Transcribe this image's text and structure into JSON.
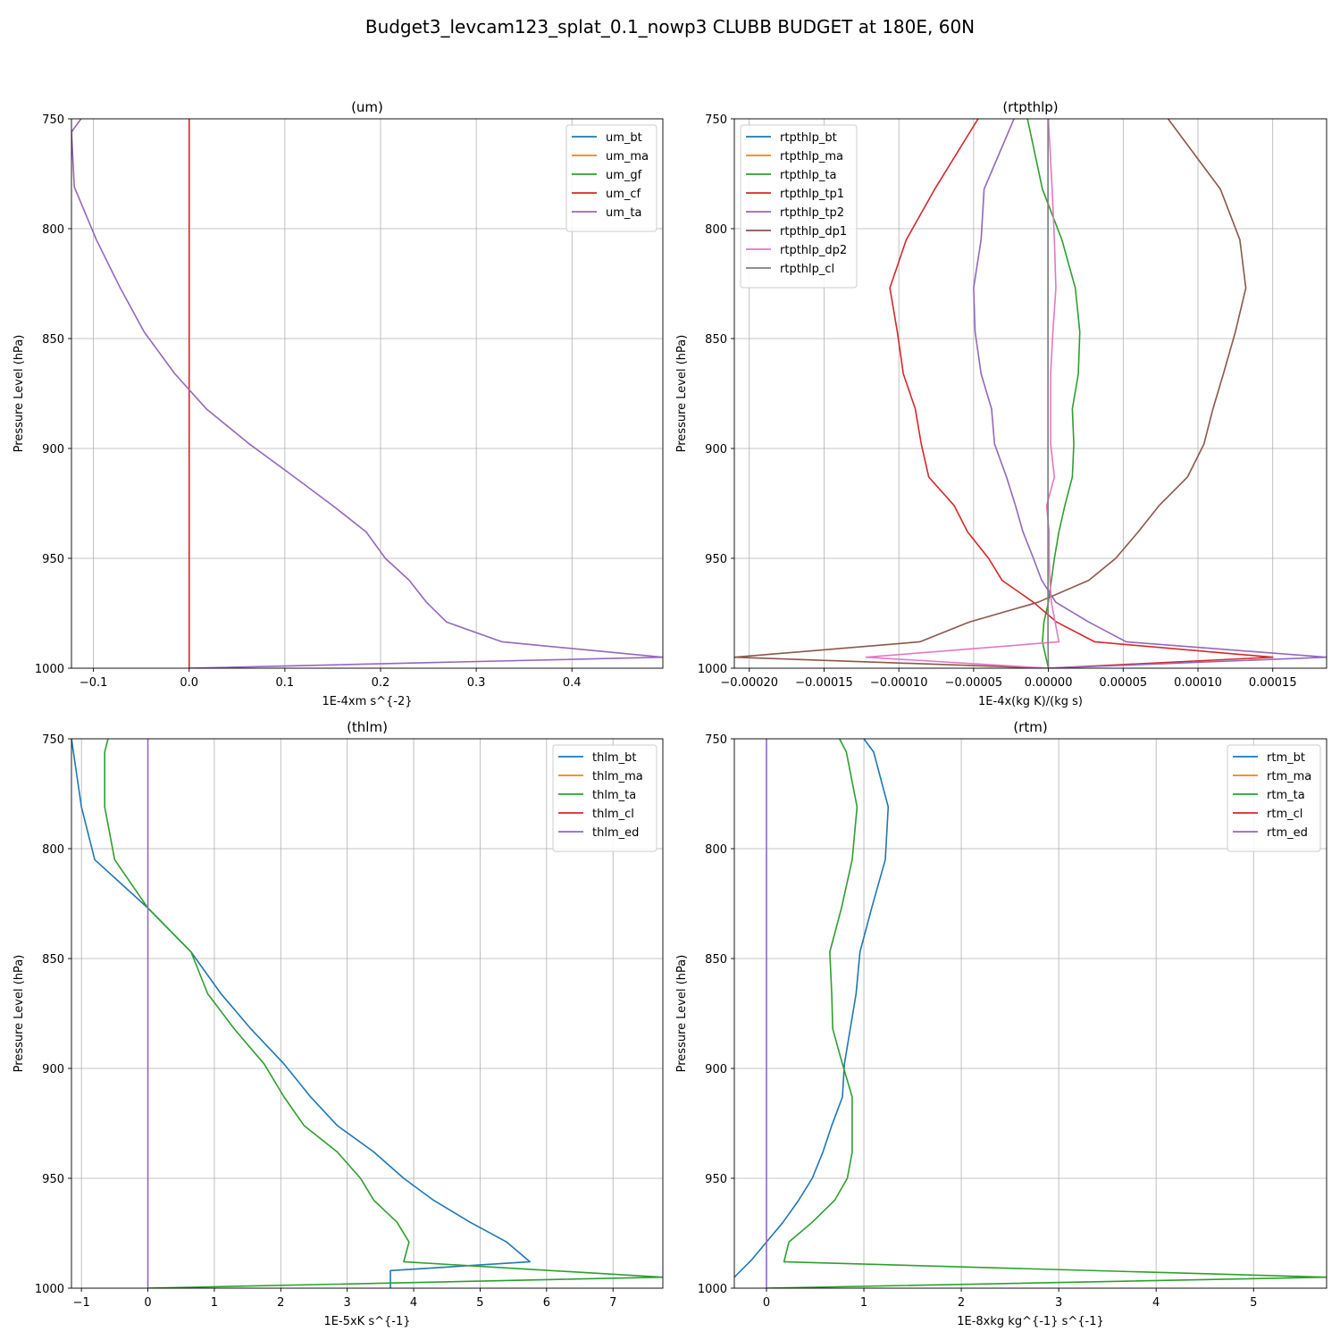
{
  "figure_title": "Budget3_levcam123_splat_0.1_nowp3 CLUBB BUDGET at 180E, 60N",
  "chart_data": [
    {
      "type": "line",
      "title": "(um)",
      "xlabel": "1E-4xm s^{-2}",
      "ylabel": "Pressure Level (hPa)",
      "xlim": [
        -0.123,
        0.495
      ],
      "ylim": [
        1000,
        750
      ],
      "xticks": [
        -0.1,
        0.0,
        0.1,
        0.2,
        0.3,
        0.4
      ],
      "xtick_labels": [
        "−0.1",
        "0.0",
        "0.1",
        "0.2",
        "0.3",
        "0.4"
      ],
      "yticks": [
        750,
        800,
        850,
        900,
        950,
        1000
      ],
      "legend_loc": "upper right",
      "series": [
        {
          "name": "um_bt",
          "color": "#1f77b4",
          "visible": false,
          "x": [],
          "y": []
        },
        {
          "name": "um_ma",
          "color": "#ff7f0e",
          "visible": false,
          "x": [],
          "y": []
        },
        {
          "name": "um_gf",
          "color": "#2ca02c",
          "visible": false,
          "x": [],
          "y": []
        },
        {
          "name": "um_cf",
          "color": "#d62728",
          "visible": true,
          "x": [
            0,
            0
          ],
          "y": [
            750,
            1000
          ]
        },
        {
          "name": "um_ta",
          "color": "#9467bd",
          "visible": true,
          "x": [
            -0.113,
            -0.123,
            -0.12,
            -0.097,
            -0.072,
            -0.047,
            -0.015,
            0.018,
            0.063,
            0.11,
            0.15,
            0.185,
            0.205,
            0.23,
            0.248,
            0.269,
            0.327,
            0.495,
            0.0
          ],
          "y": [
            750,
            756,
            781,
            805,
            827,
            847,
            866,
            882,
            898,
            913,
            926,
            938,
            950,
            960,
            970,
            979,
            988,
            995,
            1000
          ]
        }
      ]
    },
    {
      "type": "line",
      "title": "(rtpthlp)",
      "xlabel": "1E-4x(kg K)/(kg s)",
      "ylabel": "Pressure Level (hPa)",
      "xlim": [
        -0.00021,
        0.000186
      ],
      "ylim": [
        1000,
        750
      ],
      "xticks": [
        -0.0002,
        -0.00015,
        -0.0001,
        -5e-05,
        0.0,
        5e-05,
        0.0001,
        0.00015
      ],
      "xtick_labels": [
        "−0.00020",
        "−0.00015",
        "−0.00010",
        "−0.00005",
        "0.00000",
        "0.00005",
        "0.00010",
        "0.00015"
      ],
      "yticks": [
        750,
        800,
        850,
        900,
        950,
        1000
      ],
      "legend_loc": "upper left",
      "series": [
        {
          "name": "rtpthlp_bt",
          "color": "#1f77b4",
          "visible": false,
          "x": [],
          "y": []
        },
        {
          "name": "rtpthlp_ma",
          "color": "#ff7f0e",
          "visible": false,
          "x": [],
          "y": []
        },
        {
          "name": "rtpthlp_ta",
          "color": "#2ca02c",
          "visible": true,
          "x": [
            -1.4e-05,
            -4e-06,
            9e-06,
            1.8e-05,
            2.1e-05,
            2e-05,
            1.6e-05,
            1.7e-05,
            1.6e-05,
            1.1e-05,
            7e-06,
            4e-06,
            2e-06,
            0.0,
            -3e-06,
            -4e-06,
            0.0
          ],
          "y": [
            750,
            782,
            805,
            827,
            847,
            866,
            882,
            898,
            913,
            926,
            938,
            950,
            960,
            970,
            979,
            988,
            1000
          ]
        },
        {
          "name": "rtpthlp_tp1",
          "color": "#d62728",
          "visible": true,
          "x": [
            -4.7e-05,
            -7.6e-05,
            -9.5e-05,
            -0.000106,
            -0.000101,
            -9.7e-05,
            -8.9e-05,
            -8.5e-05,
            -8e-05,
            -6.3e-05,
            -5.4e-05,
            -4e-05,
            -3.1e-05,
            -1e-05,
            5.5e-06,
            3.1e-05,
            0.00015,
            0.0
          ],
          "y": [
            750,
            782,
            805,
            827,
            847,
            866,
            882,
            898,
            913,
            926,
            938,
            950,
            960,
            970,
            979,
            988,
            995,
            1000
          ]
        },
        {
          "name": "rtpthlp_tp2",
          "color": "#9467bd",
          "visible": true,
          "x": [
            -2.3e-05,
            -4.3e-05,
            -4.5e-05,
            -5e-05,
            -4.9e-05,
            -4.5e-05,
            -3.8e-05,
            -3.6e-05,
            -2.8e-05,
            -2.2e-05,
            -1.7e-05,
            -1e-05,
            -4.5e-06,
            5e-06,
            2.7e-05,
            5.2e-05,
            0.000186,
            0.0
          ],
          "y": [
            750,
            782,
            805,
            827,
            847,
            866,
            882,
            898,
            913,
            926,
            938,
            950,
            960,
            970,
            979,
            988,
            995,
            1000
          ]
        },
        {
          "name": "rtpthlp_dp1",
          "color": "#8c564b",
          "visible": true,
          "x": [
            8e-05,
            0.000115,
            0.000128,
            0.000132,
            0.000125,
            0.000117,
            0.00011,
            0.000104,
            9.3e-05,
            7.4e-05,
            6e-05,
            4.5e-05,
            2.7e-05,
            -7e-06,
            -5.3e-05,
            -8.6e-05,
            -0.00021,
            0.0
          ],
          "y": [
            750,
            782,
            805,
            827,
            847,
            866,
            882,
            898,
            913,
            926,
            938,
            950,
            960,
            970,
            979,
            988,
            995,
            1000
          ]
        },
        {
          "name": "rtpthlp_dp2",
          "color": "#e377c2",
          "visible": true,
          "x": [
            0.0,
            2.5e-06,
            4e-06,
            5e-06,
            3e-06,
            1.5e-06,
            1.5e-06,
            1.5e-06,
            4e-06,
            -1.2e-06,
            5e-07,
            5e-07,
            1e-06,
            2e-06,
            4.5e-06,
            7e-06,
            -0.000122,
            0.0
          ],
          "y": [
            750,
            782,
            805,
            827,
            847,
            866,
            882,
            898,
            913,
            926,
            938,
            950,
            960,
            970,
            979,
            988,
            995,
            1000
          ]
        },
        {
          "name": "rtpthlp_cl",
          "color": "#7f7f7f",
          "visible": true,
          "x": [
            -3e-07,
            -3e-07,
            -3e-07,
            -3e-07,
            -3e-07,
            -3e-07,
            -3e-07,
            -3e-07,
            -3e-07,
            -3e-07,
            -3e-07,
            -3e-07,
            -3e-07,
            -3e-07,
            -3e-07,
            -3e-07,
            0.0
          ],
          "y": [
            750,
            782,
            805,
            827,
            847,
            866,
            882,
            898,
            913,
            926,
            938,
            950,
            960,
            970,
            979,
            988,
            1000
          ]
        }
      ]
    },
    {
      "type": "line",
      "title": "(thlm)",
      "xlabel": "1E-5xK s^{-1}",
      "ylabel": "Pressure Level (hPa)",
      "xlim": [
        -1.15,
        7.75
      ],
      "ylim": [
        1000,
        750
      ],
      "xticks": [
        -1,
        0,
        1,
        2,
        3,
        4,
        5,
        6,
        7
      ],
      "xtick_labels": [
        "−1",
        "0",
        "1",
        "2",
        "3",
        "4",
        "5",
        "6",
        "7"
      ],
      "yticks": [
        750,
        800,
        850,
        900,
        950,
        1000
      ],
      "legend_loc": "upper right",
      "series": [
        {
          "name": "thlm_bt",
          "color": "#1f77b4",
          "visible": true,
          "x": [
            -1.15,
            -1.0,
            -0.8,
            0.0,
            0.65,
            1.1,
            1.55,
            2.05,
            2.45,
            2.85,
            3.4,
            3.85,
            4.3,
            4.85,
            5.4,
            5.75,
            3.65,
            3.65
          ],
          "y": [
            750,
            781,
            805,
            827,
            847,
            866,
            882,
            898,
            913,
            926,
            938,
            950,
            960,
            970,
            979,
            988,
            992,
            1000
          ]
        },
        {
          "name": "thlm_ma",
          "color": "#ff7f0e",
          "visible": false,
          "x": [],
          "y": []
        },
        {
          "name": "thlm_ta",
          "color": "#2ca02c",
          "visible": true,
          "x": [
            -0.6,
            -0.65,
            -0.65,
            -0.5,
            0.0,
            0.65,
            0.9,
            1.3,
            1.75,
            2.05,
            2.35,
            2.85,
            3.2,
            3.4,
            3.75,
            3.93,
            3.85,
            7.75,
            0.0
          ],
          "y": [
            750,
            756,
            781,
            805,
            827,
            847,
            866,
            882,
            898,
            913,
            926,
            938,
            950,
            960,
            970,
            979,
            988,
            995,
            1000
          ]
        },
        {
          "name": "thlm_cl",
          "color": "#d62728",
          "visible": false,
          "x": [],
          "y": []
        },
        {
          "name": "thlm_ed",
          "color": "#9467bd",
          "visible": true,
          "x": [
            0,
            0
          ],
          "y": [
            750,
            1000
          ]
        }
      ]
    },
    {
      "type": "line",
      "title": "(rtm)",
      "xlabel": "1E-8xkg kg^{-1} s^{-1}",
      "ylabel": "Pressure Level (hPa)",
      "xlim": [
        -0.33,
        5.75
      ],
      "ylim": [
        1000,
        750
      ],
      "xticks": [
        0,
        1,
        2,
        3,
        4,
        5
      ],
      "xtick_labels": [
        "0",
        "1",
        "2",
        "3",
        "4",
        "5"
      ],
      "yticks": [
        750,
        800,
        850,
        900,
        950,
        1000
      ],
      "legend_loc": "upper right",
      "series": [
        {
          "name": "rtm_bt",
          "color": "#1f77b4",
          "visible": true,
          "x": [
            1.0,
            1.1,
            1.25,
            1.22,
            1.08,
            0.96,
            0.92,
            0.86,
            0.8,
            0.78,
            0.67,
            0.58,
            0.47,
            0.33,
            0.17,
            0.0,
            -0.15,
            -0.33
          ],
          "y": [
            750,
            756,
            781,
            805,
            827,
            847,
            866,
            882,
            898,
            913,
            926,
            938,
            950,
            960,
            970,
            979,
            987,
            995
          ]
        },
        {
          "name": "rtm_ma",
          "color": "#ff7f0e",
          "visible": false,
          "x": [],
          "y": []
        },
        {
          "name": "rtm_ta",
          "color": "#2ca02c",
          "visible": true,
          "x": [
            0.75,
            0.82,
            0.93,
            0.88,
            0.77,
            0.65,
            0.67,
            0.68,
            0.78,
            0.88,
            0.88,
            0.88,
            0.83,
            0.7,
            0.47,
            0.23,
            0.18,
            5.75,
            0.0
          ],
          "y": [
            750,
            756,
            781,
            805,
            827,
            847,
            866,
            882,
            898,
            913,
            926,
            938,
            950,
            960,
            970,
            979,
            988,
            995,
            1000
          ]
        },
        {
          "name": "rtm_cl",
          "color": "#d62728",
          "visible": false,
          "x": [],
          "y": []
        },
        {
          "name": "rtm_ed",
          "color": "#9467bd",
          "visible": true,
          "x": [
            0,
            0
          ],
          "y": [
            750,
            1000
          ]
        }
      ]
    }
  ]
}
